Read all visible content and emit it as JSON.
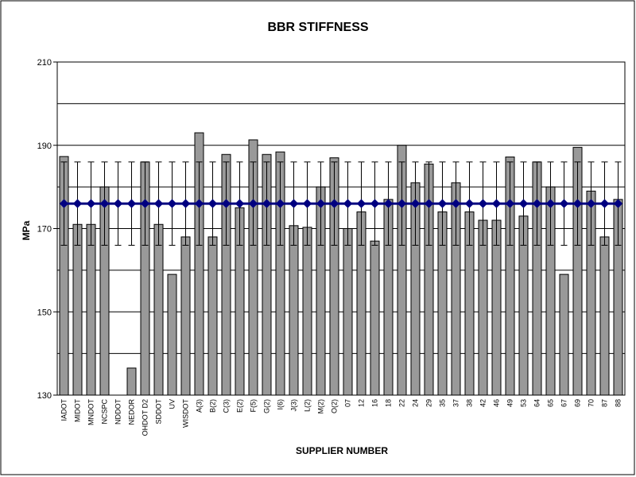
{
  "chart_data": {
    "type": "bar",
    "title": "BBR STIFFNESS",
    "x_label": "SUPPLIER NUMBER",
    "y_label": "MPa",
    "categories": [
      "IADOT",
      "MIDOT",
      "MNDOT",
      "NCSPC",
      "NDDOT",
      "NEDOR",
      "OHDOT D2",
      "SDDOT",
      "UV",
      "WISDOT",
      "A(3)",
      "B(2)",
      "C(3)",
      "E(2)",
      "F(5)",
      "G(2)",
      "I(6)",
      "J(3)",
      "L(2)",
      "M(2)",
      "O(2)",
      "07",
      "12",
      "16",
      "18",
      "22",
      "24",
      "29",
      "35",
      "37",
      "38",
      "42",
      "46",
      "49",
      "53",
      "64",
      "65",
      "67",
      "69",
      "70",
      "87",
      "88"
    ],
    "series": [
      {
        "type": "bar",
        "color": "#999999",
        "values": [
          187.3,
          171,
          171,
          180,
          null,
          136.5,
          186,
          171,
          159,
          168,
          193,
          168,
          187.8,
          175,
          191.3,
          187.8,
          188.4,
          170.7,
          170.3,
          180,
          187,
          170,
          174,
          167,
          177,
          190,
          181,
          185.5,
          174,
          181,
          174,
          172,
          172,
          187.2,
          173,
          186,
          180,
          159,
          189.5,
          179,
          168,
          177
        ]
      },
      {
        "type": "line",
        "color": "#000080",
        "error": 10,
        "values": [
          176,
          176,
          176,
          176,
          176,
          176,
          176,
          176,
          176,
          176,
          176,
          176,
          176,
          176,
          176,
          176,
          176,
          176,
          176,
          176,
          176,
          176,
          176,
          176,
          176,
          176,
          176,
          176,
          176,
          176,
          176,
          176,
          176,
          176,
          176,
          176,
          176,
          176,
          176,
          176,
          176,
          176
        ]
      }
    ],
    "ylim": [
      130,
      210
    ],
    "yticks": [
      130,
      150,
      170,
      190,
      210
    ],
    "grid_ticks": [
      130,
      140,
      150,
      160,
      170,
      180,
      190,
      200,
      210
    ],
    "grid": true
  }
}
